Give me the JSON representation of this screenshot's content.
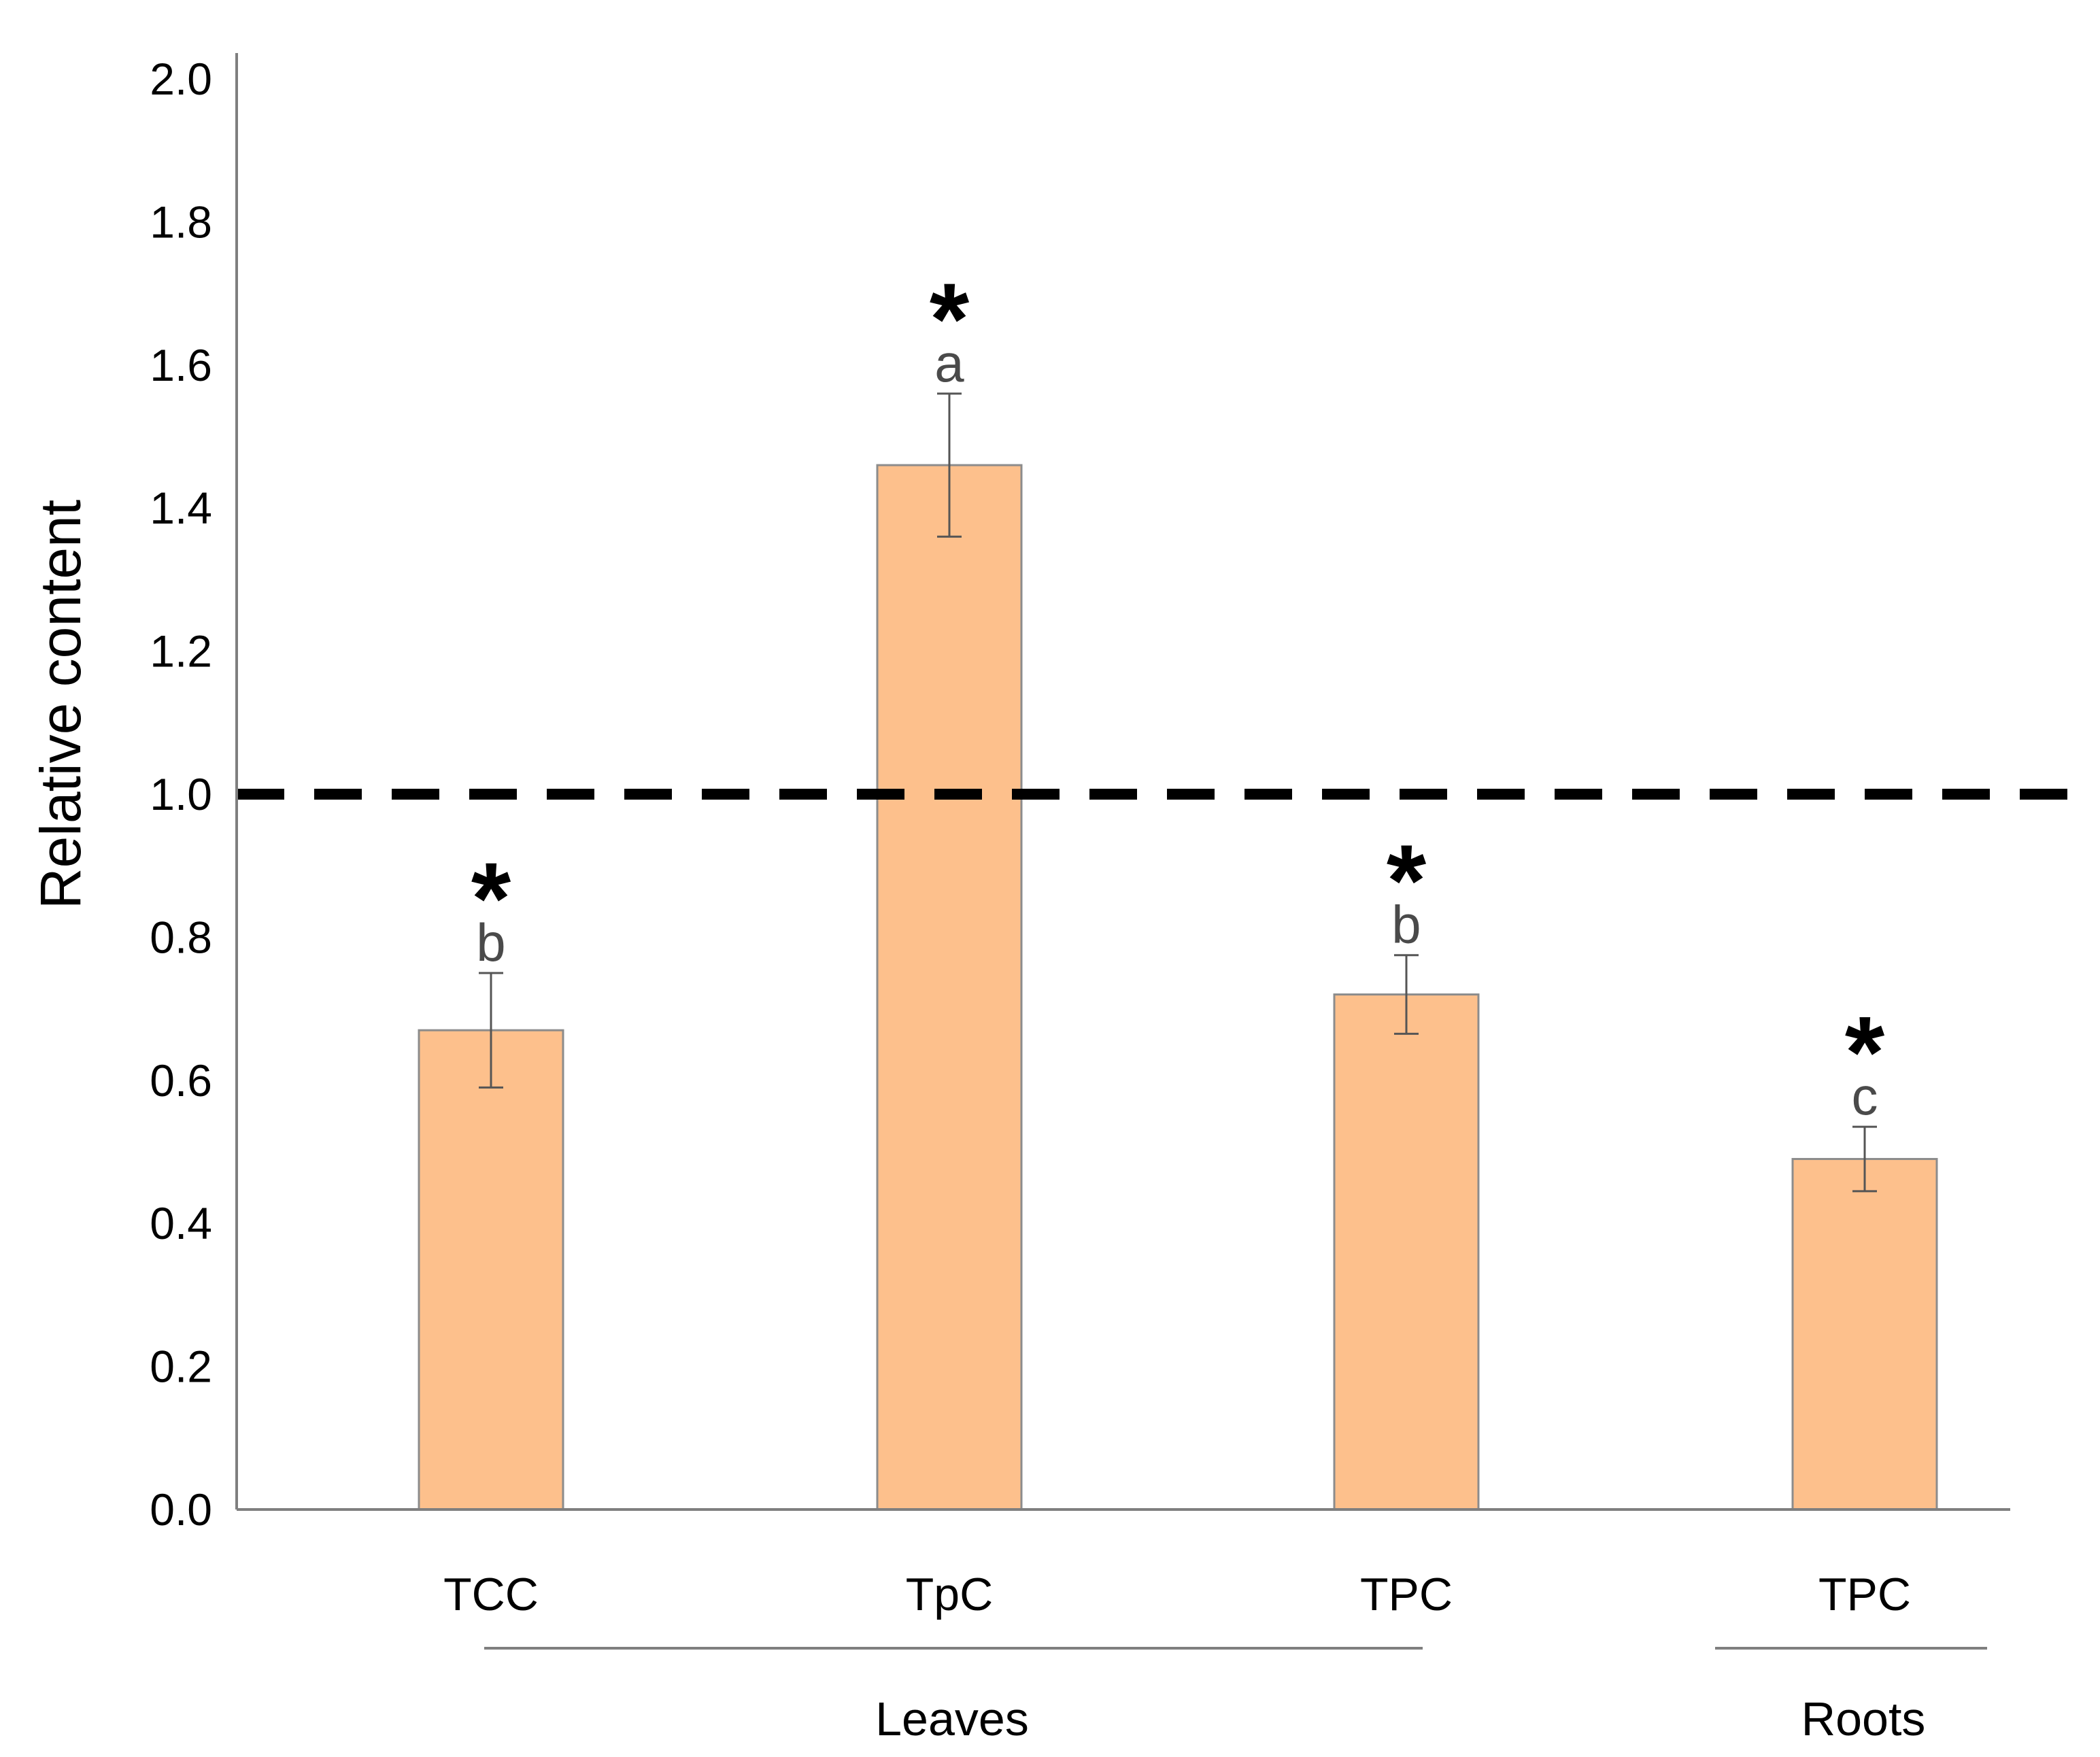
{
  "chart_data": {
    "type": "bar",
    "title": "",
    "xlabel": "",
    "ylabel": "Relative content",
    "ylim": [
      0,
      2.0
    ],
    "yticks": [
      "0.0",
      "0.2",
      "0.4",
      "0.6",
      "0.8",
      "1.0",
      "1.2",
      "1.4",
      "1.6",
      "1.8",
      "2.0"
    ],
    "grid": false,
    "categories": [
      "TCC",
      "TpC",
      "TPC",
      "TPC"
    ],
    "values": [
      0.67,
      1.46,
      0.72,
      0.49
    ],
    "error_bars": [
      0.08,
      0.1,
      0.055,
      0.045
    ],
    "significance_stars": [
      "*",
      "*",
      "*",
      "*"
    ],
    "letters": [
      "b",
      "a",
      "b",
      "c"
    ],
    "reference_line": {
      "y": 1.0,
      "style": "dashed"
    },
    "groups": [
      {
        "label": "Leaves",
        "categories": [
          0,
          1,
          2
        ]
      },
      {
        "label": "Roots",
        "categories": [
          3
        ]
      }
    ],
    "colors": {
      "bar_fill": "#FDC08C",
      "bar_stroke": "#8c8c8c",
      "axis": "#7f7f7f",
      "reference": "#000000"
    }
  }
}
